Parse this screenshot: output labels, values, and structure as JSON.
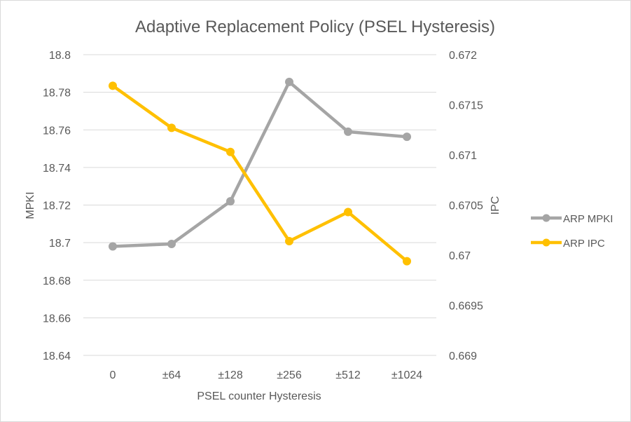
{
  "chart_data": {
    "type": "line",
    "title": "Adaptive Replacement Policy (PSEL Hysteresis)",
    "xlabel": "PSEL counter Hysteresis",
    "ylabel": "MPKI",
    "y2label": "IPC",
    "categories": [
      "0",
      "±64",
      "±128",
      "±256",
      "±512",
      "±1024"
    ],
    "ylim": [
      18.64,
      18.8
    ],
    "yticks": [
      "18.8",
      "18.78",
      "18.76",
      "18.74",
      "18.72",
      "18.7",
      "18.68",
      "18.66",
      "18.64"
    ],
    "y2lim": [
      0.669,
      0.672
    ],
    "y2ticks": [
      "0.672",
      "0.6715",
      "0.671",
      "0.6705",
      "0.67",
      "0.6695",
      "0.669"
    ],
    "grid": true,
    "legend_position": "right",
    "series": [
      {
        "name": "ARP MPKI",
        "axis": "left",
        "color": "#a5a5a5",
        "values": [
          18.698,
          18.6993,
          18.722,
          18.7855,
          18.759,
          18.7563
        ]
      },
      {
        "name": "ARP IPC",
        "axis": "right",
        "color": "#ffc000",
        "values": [
          0.67169,
          0.67127,
          0.67103,
          0.67014,
          0.67043,
          0.66994
        ]
      }
    ]
  }
}
